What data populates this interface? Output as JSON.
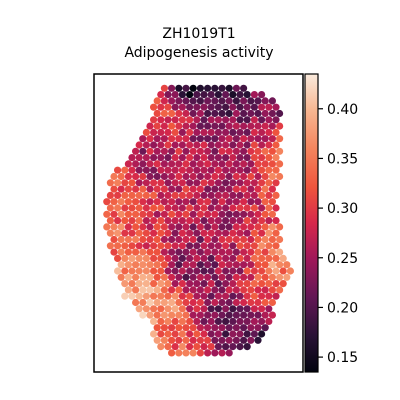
{
  "chart_data": {
    "type": "scatter",
    "title": "ZH1019T1",
    "subtitle": "Adipogenesis activity",
    "xlabel": "",
    "ylabel": "",
    "colorbar": {
      "cmap": "rocket",
      "vmin": 0.135,
      "vmax": 0.435,
      "ticks": [
        "0.15",
        "0.20",
        "0.25",
        "0.30",
        "0.35",
        "0.40"
      ]
    },
    "grid": false,
    "spot_hotspots": [
      [
        194,
        96,
        0.14,
        7
      ],
      [
        230,
        96,
        0.17,
        8
      ],
      [
        262,
        118,
        0.22,
        14
      ],
      [
        248,
        156,
        0.22,
        10
      ],
      [
        160,
        160,
        0.24,
        10
      ],
      [
        186,
        180,
        0.28,
        16
      ],
      [
        214,
        196,
        0.25,
        12
      ],
      [
        240,
        182,
        0.26,
        12
      ],
      [
        268,
        150,
        0.36,
        11
      ],
      [
        270,
        175,
        0.34,
        10
      ],
      [
        120,
        210,
        0.33,
        12
      ],
      [
        130,
        240,
        0.35,
        14
      ],
      [
        150,
        232,
        0.25,
        10
      ],
      [
        218,
        236,
        0.25,
        10
      ],
      [
        196,
        252,
        0.24,
        12
      ],
      [
        182,
        274,
        0.19,
        8
      ],
      [
        224,
        262,
        0.23,
        10
      ],
      [
        244,
        250,
        0.3,
        10
      ],
      [
        275,
        256,
        0.37,
        9
      ],
      [
        138,
        288,
        0.39,
        13
      ],
      [
        148,
        310,
        0.39,
        12
      ],
      [
        168,
        300,
        0.36,
        10
      ],
      [
        176,
        336,
        0.33,
        12
      ],
      [
        204,
        322,
        0.23,
        10
      ],
      [
        244,
        332,
        0.18,
        14
      ],
      [
        222,
        344,
        0.21,
        10
      ],
      [
        262,
        300,
        0.32,
        10
      ],
      [
        200,
        350,
        0.36,
        8
      ],
      [
        200,
        132,
        0.24,
        12
      ],
      [
        170,
        126,
        0.31,
        10
      ]
    ],
    "point_count": 700
  }
}
